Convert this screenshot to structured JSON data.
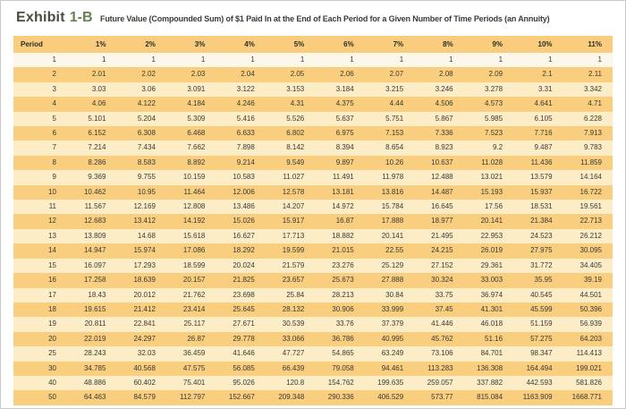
{
  "title": {
    "exhibit_word": "Exhibit",
    "exhibit_number": "1-B",
    "subtitle": "Future Value (Compounded Sum) of $1 Paid In at the End of Each Period for a Given Number of Time Periods (an Annuity)"
  },
  "colors": {
    "header_bg": "#f9cd7d",
    "row_orange_bg": "#f9ce7f",
    "row_cream_bg": "#fcedc6",
    "row_first_bg": "#fdf7e9",
    "exhibit_number_green": "#66814f",
    "title_gray": "#4b4b44",
    "text_dark": "#3a3a35"
  },
  "table": {
    "columns": [
      "Period",
      "1%",
      "2%",
      "3%",
      "4%",
      "5%",
      "6%",
      "7%",
      "8%",
      "9%",
      "10%",
      "11%"
    ],
    "rows": [
      {
        "period": "1",
        "values": [
          "1",
          "1",
          "1",
          "1",
          "1",
          "1",
          "1",
          "1",
          "1",
          "1",
          "1"
        ]
      },
      {
        "period": "2",
        "values": [
          "2.01",
          "2.02",
          "2.03",
          "2.04",
          "2.05",
          "2.06",
          "2.07",
          "2.08",
          "2.09",
          "2.1",
          "2.11"
        ]
      },
      {
        "period": "3",
        "values": [
          "3.03",
          "3.06",
          "3.091",
          "3.122",
          "3.153",
          "3.184",
          "3.215",
          "3.246",
          "3.278",
          "3.31",
          "3.342"
        ]
      },
      {
        "period": "4",
        "values": [
          "4.06",
          "4.122",
          "4.184",
          "4.246",
          "4.31",
          "4.375",
          "4.44",
          "4.506",
          "4.573",
          "4.641",
          "4.71"
        ]
      },
      {
        "period": "5",
        "values": [
          "5.101",
          "5.204",
          "5.309",
          "5.416",
          "5.526",
          "5.637",
          "5.751",
          "5.867",
          "5.985",
          "6.105",
          "6.228"
        ]
      },
      {
        "period": "6",
        "values": [
          "6.152",
          "6.308",
          "6.468",
          "6.633",
          "6.802",
          "6.975",
          "7.153",
          "7.336",
          "7.523",
          "7.716",
          "7.913"
        ]
      },
      {
        "period": "7",
        "values": [
          "7.214",
          "7.434",
          "7.662",
          "7.898",
          "8.142",
          "8.394",
          "8.654",
          "8.923",
          "9.2",
          "9.487",
          "9.783"
        ]
      },
      {
        "period": "8",
        "values": [
          "8.286",
          "8.583",
          "8.892",
          "9.214",
          "9.549",
          "9.897",
          "10.26",
          "10.637",
          "11.028",
          "11.436",
          "11.859"
        ]
      },
      {
        "period": "9",
        "values": [
          "9.369",
          "9.755",
          "10.159",
          "10.583",
          "11.027",
          "11.491",
          "11.978",
          "12.488",
          "13.021",
          "13.579",
          "14.164"
        ]
      },
      {
        "period": "10",
        "values": [
          "10.462",
          "10.95",
          "11.464",
          "12.006",
          "12.578",
          "13.181",
          "13.816",
          "14.487",
          "15.193",
          "15.937",
          "16.722"
        ]
      },
      {
        "period": "11",
        "values": [
          "11.567",
          "12.169",
          "12.808",
          "13.486",
          "14.207",
          "14.972",
          "15.784",
          "16.645",
          "17.56",
          "18.531",
          "19.561"
        ]
      },
      {
        "period": "12",
        "values": [
          "12.683",
          "13.412",
          "14.192",
          "15.026",
          "15.917",
          "16.87",
          "17.888",
          "18.977",
          "20.141",
          "21.384",
          "22.713"
        ]
      },
      {
        "period": "13",
        "values": [
          "13.809",
          "14.68",
          "15.618",
          "16.627",
          "17.713",
          "18.882",
          "20.141",
          "21.495",
          "22.953",
          "24.523",
          "26.212"
        ]
      },
      {
        "period": "14",
        "values": [
          "14.947",
          "15.974",
          "17.086",
          "18.292",
          "19.599",
          "21.015",
          "22.55",
          "24.215",
          "26.019",
          "27.975",
          "30.095"
        ]
      },
      {
        "period": "15",
        "values": [
          "16.097",
          "17.293",
          "18.599",
          "20.024",
          "21.579",
          "23.276",
          "25.129",
          "27.152",
          "29.361",
          "31.772",
          "34.405"
        ]
      },
      {
        "period": "16",
        "values": [
          "17.258",
          "18.639",
          "20.157",
          "21.825",
          "23.657",
          "25.673",
          "27.888",
          "30.324",
          "33.003",
          "35.95",
          "39.19"
        ]
      },
      {
        "period": "17",
        "values": [
          "18.43",
          "20.012",
          "21.762",
          "23.698",
          "25.84",
          "28.213",
          "30.84",
          "33.75",
          "36.974",
          "40.545",
          "44.501"
        ]
      },
      {
        "period": "18",
        "values": [
          "19.615",
          "21.412",
          "23.414",
          "25.645",
          "28.132",
          "30.906",
          "33.999",
          "37.45",
          "41.301",
          "45.599",
          "50.396"
        ]
      },
      {
        "period": "19",
        "values": [
          "20.811",
          "22.841",
          "25.117",
          "27.671",
          "30.539",
          "33.76",
          "37.379",
          "41.446",
          "46.018",
          "51.159",
          "56.939"
        ]
      },
      {
        "period": "20",
        "values": [
          "22.019",
          "24.297",
          "26.87",
          "29.778",
          "33.066",
          "36.786",
          "40.995",
          "45.762",
          "51.16",
          "57.275",
          "64.203"
        ]
      },
      {
        "period": "25",
        "values": [
          "28.243",
          "32.03",
          "36.459",
          "41.646",
          "47.727",
          "54.865",
          "63.249",
          "73.106",
          "84.701",
          "98.347",
          "114.413"
        ]
      },
      {
        "period": "30",
        "values": [
          "34.785",
          "40.568",
          "47.575",
          "56.085",
          "66.439",
          "79.058",
          "94.461",
          "113.283",
          "136.308",
          "164.494",
          "199.021"
        ]
      },
      {
        "period": "40",
        "values": [
          "48.886",
          "60.402",
          "75.401",
          "95.026",
          "120.8",
          "154.762",
          "199.635",
          "259.057",
          "337.882",
          "442.593",
          "581.826"
        ]
      },
      {
        "period": "50",
        "values": [
          "64.463",
          "84.579",
          "112.797",
          "152.667",
          "209.348",
          "290.336",
          "406.529",
          "573.77",
          "815.084",
          "1163.909",
          "1668.771"
        ]
      }
    ]
  }
}
